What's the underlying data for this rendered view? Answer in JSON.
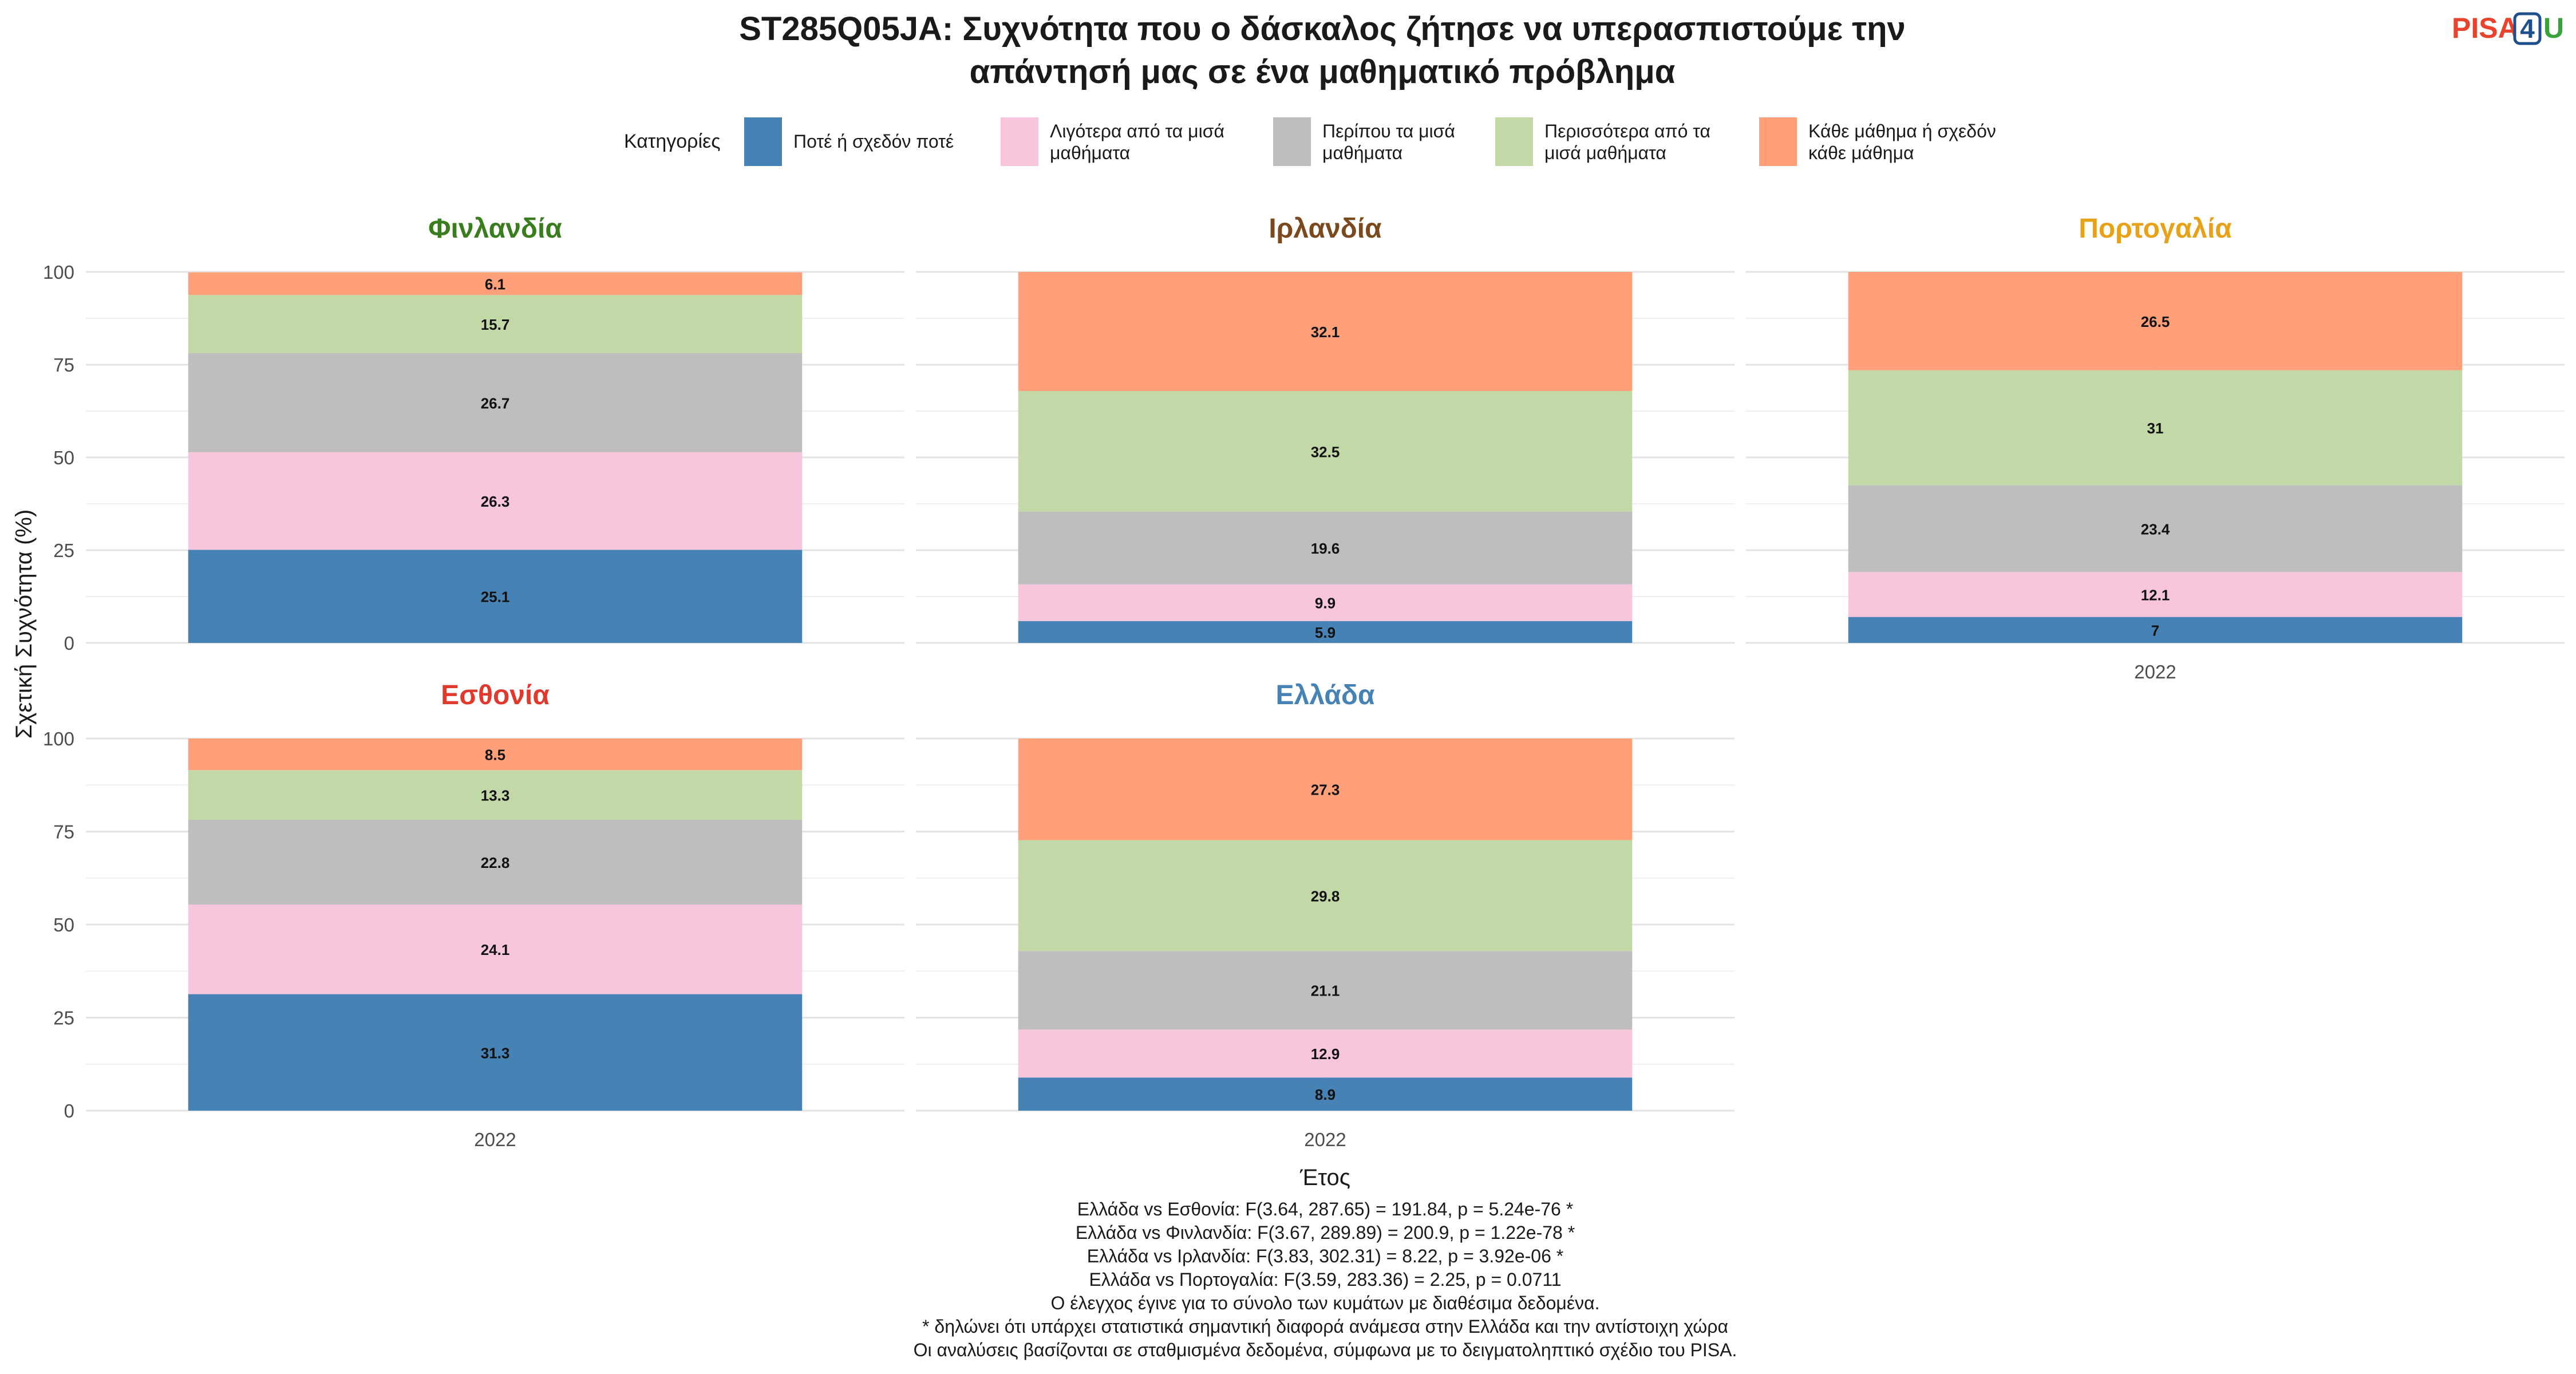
{
  "title_lines": [
    "ST285Q05JA: Συχνότητα που ο δάσκαλος ζήτησε να υπερασπιστούμε την",
    "απάντησή μας σε ένα μαθηματικό πρόβλημα"
  ],
  "logo": {
    "text": "PISA4U",
    "parts": [
      "PISA",
      "4",
      "U"
    ],
    "colors": [
      "#e8442d",
      "#1f4e8c",
      "#3aa23a"
    ]
  },
  "legend": {
    "title": "Κατηγορίες",
    "items": [
      {
        "lines": [
          "Ποτέ ή σχεδόν ποτέ"
        ],
        "color": "#4682b4"
      },
      {
        "lines": [
          "Λιγότερα από τα μισά",
          "μαθήματα"
        ],
        "color": "#f7c6dc"
      },
      {
        "lines": [
          "Περίπου τα μισά",
          "μαθήματα"
        ],
        "color": "#bebebe"
      },
      {
        "lines": [
          "Περισσότερα από τα",
          "μισά μαθήματα"
        ],
        "color": "#c2d8a6"
      },
      {
        "lines": [
          "Κάθε μάθημα ή σχεδόν",
          "κάθε μάθημα"
        ],
        "color": "#ffa07a"
      }
    ]
  },
  "chart_data": {
    "type": "bar",
    "stacked": true,
    "ylabel": "Σχετική Συχνότητα (%)",
    "xlabel": "Έτος",
    "ylim": [
      0,
      100
    ],
    "yticks": [
      0,
      25,
      50,
      75,
      100
    ],
    "categories": [
      "2022"
    ],
    "series_names": [
      "Ποτέ ή σχεδόν ποτέ",
      "Λιγότερα από τα μισά μαθήματα",
      "Περίπου τα μισά μαθήματα",
      "Περισσότερα από τα μισά μαθήματα",
      "Κάθε μάθημα ή σχεδόν κάθε μάθημα"
    ],
    "panels": [
      {
        "country": "Φινλανδία",
        "title_color": "#3a7d1f",
        "year": "2022",
        "values": [
          25.1,
          26.3,
          26.7,
          15.7,
          6.1
        ],
        "labels": [
          "25.1",
          "26.3",
          "26.7",
          "15.7",
          "6.1"
        ]
      },
      {
        "country": "Ιρλανδία",
        "title_color": "#7a4a1e",
        "year": "2022",
        "values": [
          5.9,
          9.9,
          19.6,
          32.5,
          32.1
        ],
        "labels": [
          "5.9",
          "9.9",
          "19.6",
          "32.5",
          "32.1"
        ]
      },
      {
        "country": "Πορτογαλία",
        "title_color": "#e8a21a",
        "year": "2022",
        "values": [
          7,
          12.1,
          23.4,
          31,
          26.5
        ],
        "labels": [
          "7",
          "12.1",
          "23.4",
          "31",
          "26.5"
        ]
      },
      {
        "country": "Εσθονία",
        "title_color": "#e03a2f",
        "year": "2022",
        "values": [
          31.3,
          24.1,
          22.8,
          13.3,
          8.5
        ],
        "labels": [
          "31.3",
          "24.1",
          "22.8",
          "13.3",
          "8.5"
        ]
      },
      {
        "country": "Ελλάδα",
        "title_color": "#4682b4",
        "year": "2022",
        "values": [
          8.9,
          12.9,
          21.1,
          29.8,
          27.3
        ],
        "labels": [
          "8.9",
          "12.9",
          "21.1",
          "29.8",
          "27.3"
        ]
      }
    ]
  },
  "footnotes": [
    "Ελλάδα vs Εσθονία: F(3.64, 287.65) = 191.84, p = 5.24e-76 *",
    "Ελλάδα vs Φινλανδία: F(3.67, 289.89) = 200.9, p = 1.22e-78 *",
    "Ελλάδα vs Ιρλανδία: F(3.83, 302.31) = 8.22, p = 3.92e-06 *",
    "Ελλάδα vs Πορτογαλία: F(3.59, 283.36) = 2.25, p = 0.0711",
    "Ο έλεγχος έγινε για το σύνολο των κυμάτων με διαθέσιμα δεδομένα.",
    "* δηλώνει ότι υπάρχει στατιστικά σημαντική διαφορά ανάμεσα στην Ελλάδα και την αντίστοιχη χώρα",
    "Οι αναλύσεις βασίζονται σε σταθμισμένα δεδομένα, σύμφωνα με το δειγματοληπτικό σχέδιο του PISA."
  ]
}
